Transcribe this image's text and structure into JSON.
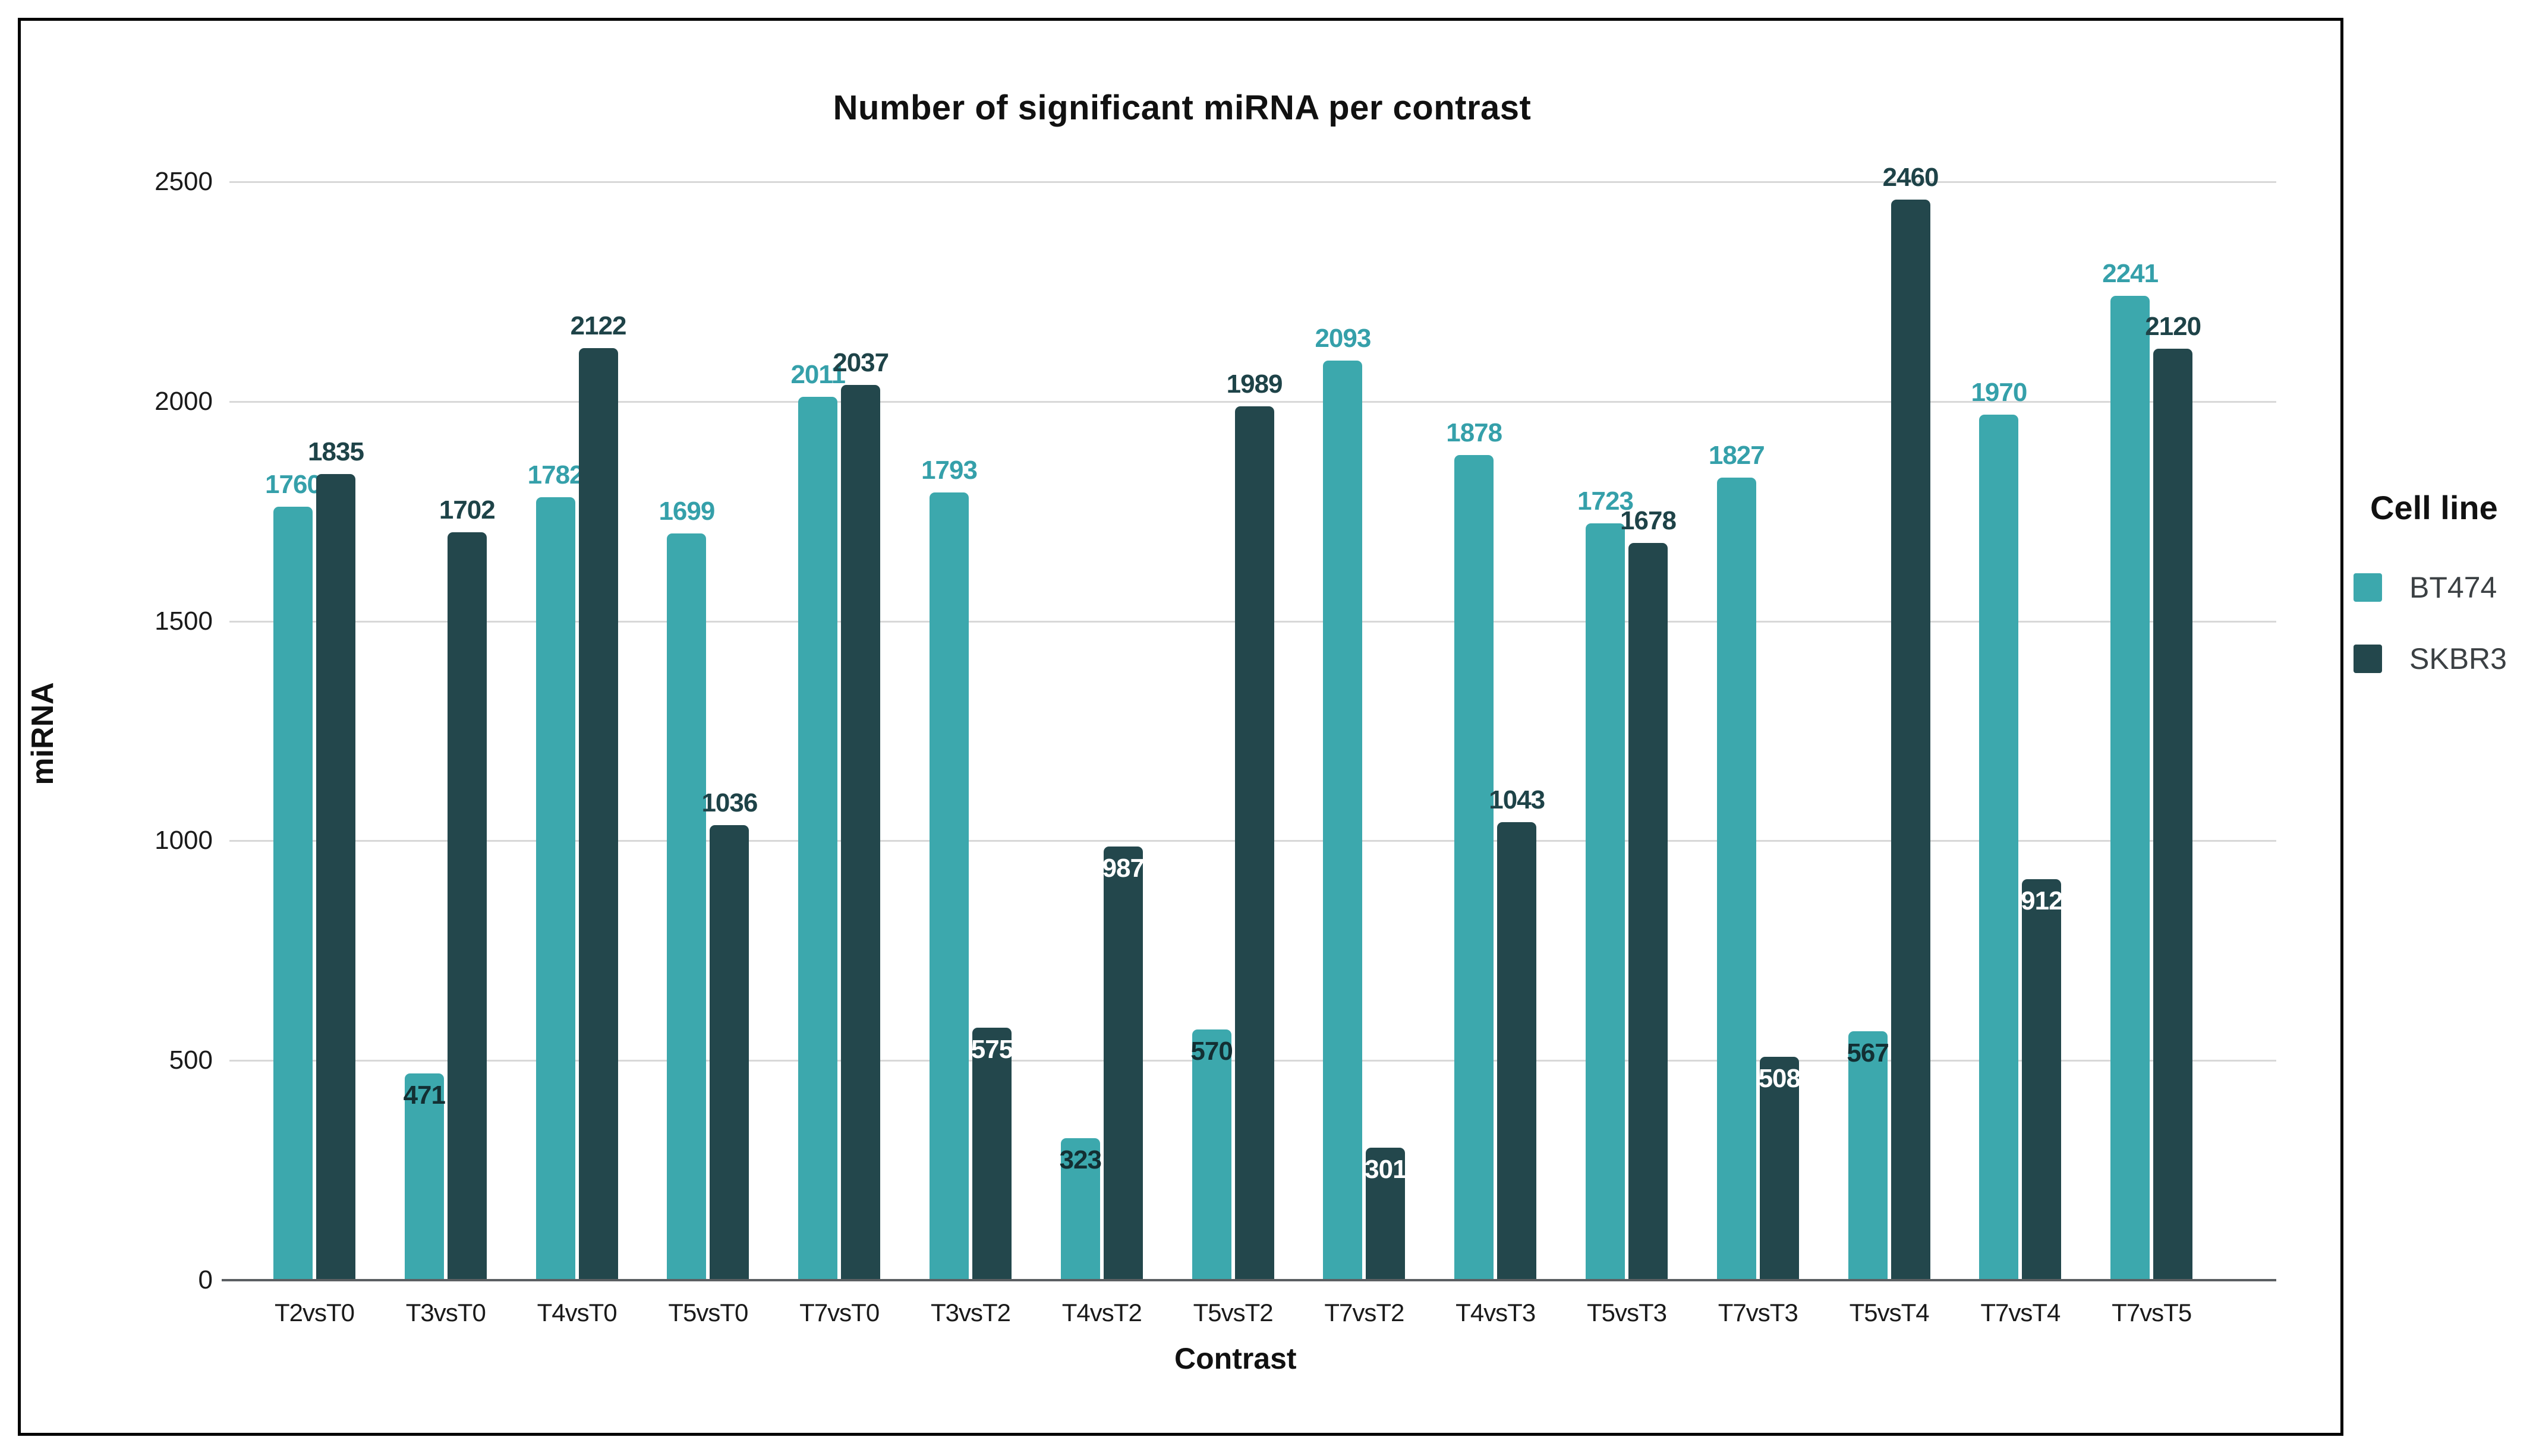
{
  "title": "Number of significant miRNA per contrast",
  "axes": {
    "x_label": "Contrast",
    "y_label": "miRNA",
    "y_ticks": [
      0,
      500,
      1000,
      1500,
      2000,
      2500
    ],
    "y_max": 2500
  },
  "legend": {
    "title": "Cell line",
    "entries": [
      {
        "label": "BT474",
        "color": "#3ca8ad"
      },
      {
        "label": "SKBR3",
        "color": "#23474c"
      }
    ]
  },
  "colors": {
    "background": "#ffffff",
    "panel_border": "#000000",
    "gridline": "#d8d8d8",
    "axis_line": "#5b5f62",
    "tick_text": "#1a1a1a",
    "bt474_bar": "#3ca8ad",
    "skbr3_bar": "#23474c",
    "bt474_label_above": "#35a0aa",
    "skbr3_label_above": "#1e4348",
    "label_inside_on_teal": "#132f33",
    "label_inside_on_dark": "#ffffff"
  },
  "chart_data": {
    "type": "bar",
    "title": "Number of significant miRNA per contrast",
    "xlabel": "Contrast",
    "ylabel": "miRNA",
    "ylim": [
      0,
      2500
    ],
    "grid": true,
    "legend_position": "right-outside",
    "categories": [
      "T2vsT0",
      "T3vsT0",
      "T4vsT0",
      "T5vsT0",
      "T7vsT0",
      "T3vsT2",
      "T4vsT2",
      "T5vsT2",
      "T7vsT2",
      "T4vsT3",
      "T5vsT3",
      "T7vsT3",
      "T5vsT4",
      "T7vsT4",
      "T7vsT5"
    ],
    "series": [
      {
        "name": "BT474",
        "color": "#3ca8ad",
        "label_color_above": "#35a0aa",
        "label_color_inside": "#132f33",
        "values": [
          1760,
          471,
          1782,
          1699,
          2011,
          1793,
          323,
          570,
          2093,
          1878,
          1723,
          1827,
          567,
          1970,
          2241
        ],
        "label_positions": [
          "above",
          "inside",
          "above",
          "above",
          "above",
          "above",
          "inside",
          "inside",
          "above",
          "above",
          "above",
          "above",
          "inside",
          "above",
          "above"
        ]
      },
      {
        "name": "SKBR3",
        "color": "#23474c",
        "label_color_above": "#1e4348",
        "label_color_inside": "#ffffff",
        "values": [
          1835,
          1702,
          2122,
          1036,
          2037,
          575,
          987,
          1989,
          301,
          1043,
          1678,
          508,
          2460,
          912,
          2120
        ],
        "label_positions": [
          "above",
          "above",
          "above",
          "above",
          "above",
          "inside",
          "inside",
          "above",
          "inside",
          "above",
          "above",
          "inside",
          "above",
          "inside",
          "above"
        ]
      }
    ]
  }
}
